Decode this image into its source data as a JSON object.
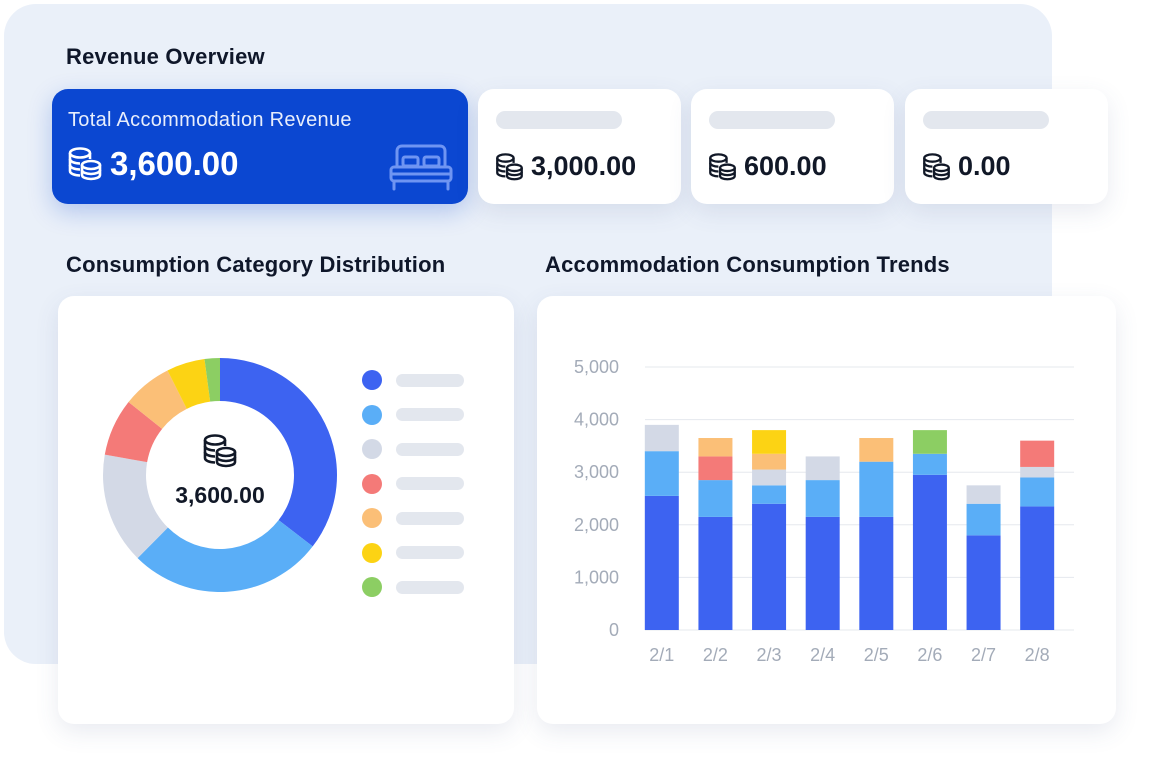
{
  "revenue_overview": {
    "title": "Revenue Overview",
    "primary_card": {
      "label": "Total Accommodation Revenue",
      "value": "3,600.00",
      "icon": "bed-icon"
    },
    "cards": [
      {
        "value": "3,000.00",
        "icon": "coins-icon"
      },
      {
        "value": "600.00",
        "icon": "coins-icon"
      },
      {
        "value": "0.00",
        "icon": "coins-icon"
      }
    ]
  },
  "distribution": {
    "title": "Consumption Category Distribution",
    "center_value": "3,600.00",
    "legend_colors": [
      "#3d63f1",
      "#5aaef7",
      "#d3d9e6",
      "#f47a78",
      "#fbbf77",
      "#fcd314",
      "#8cce63"
    ]
  },
  "trends": {
    "title": "Accommodation Consumption Trends"
  },
  "chart_data": [
    {
      "type": "pie",
      "donut": true,
      "slices": [
        {
          "color": "#3d63f1",
          "value": 33.5
        },
        {
          "color": "#5aaef7",
          "value": 25.5
        },
        {
          "color": "#d3d9e6",
          "value": 14.5
        },
        {
          "color": "#f47a78",
          "value": 7.5
        },
        {
          "color": "#fbbf77",
          "value": 6.5
        },
        {
          "color": "#fcd314",
          "value": 5.0
        },
        {
          "color": "#8cce63",
          "value": 2.0
        }
      ]
    },
    {
      "type": "bar",
      "stacked": true,
      "categories": [
        "2/1",
        "2/2",
        "2/3",
        "2/4",
        "2/5",
        "2/6",
        "2/7",
        "2/8"
      ],
      "ylim": [
        0,
        5000
      ],
      "yticks": [
        "0",
        "1,000",
        "2,000",
        "3,000",
        "4,000",
        "5,000"
      ],
      "grid": true,
      "series": [
        {
          "color": "#3d63f1",
          "values": [
            2550,
            2150,
            2400,
            2150,
            2150,
            2950,
            1800,
            2350
          ]
        },
        {
          "color": "#5aaef7",
          "values": [
            850,
            700,
            350,
            700,
            1050,
            400,
            600,
            550
          ]
        },
        {
          "color": "#d3d9e6",
          "values": [
            500,
            0,
            300,
            450,
            0,
            0,
            350,
            200
          ]
        },
        {
          "color": "#f47a78",
          "values": [
            0,
            450,
            0,
            0,
            0,
            0,
            0,
            500
          ]
        },
        {
          "color": "#fbbf77",
          "values": [
            0,
            350,
            300,
            0,
            450,
            0,
            0,
            0
          ]
        },
        {
          "color": "#fcd314",
          "values": [
            0,
            0,
            450,
            0,
            0,
            0,
            0,
            0
          ]
        },
        {
          "color": "#8cce63",
          "values": [
            0,
            0,
            0,
            0,
            0,
            450,
            0,
            0
          ]
        }
      ]
    }
  ]
}
